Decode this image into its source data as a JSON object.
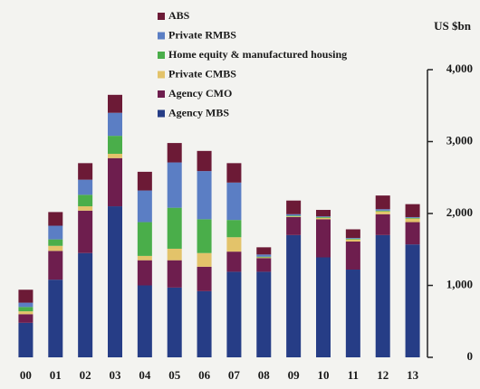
{
  "chart_data": {
    "type": "stacked_bar",
    "y_axis_label": "US $bn",
    "categories": [
      "00",
      "01",
      "02",
      "03",
      "04",
      "05",
      "06",
      "07",
      "08",
      "09",
      "10",
      "11",
      "12",
      "13"
    ],
    "series": [
      {
        "name": "Agency MBS",
        "color": "#263d86",
        "values": [
          480,
          1080,
          1450,
          2100,
          1000,
          970,
          920,
          1190,
          1190,
          1700,
          1390,
          1220,
          1700,
          1570
        ]
      },
      {
        "name": "Agency CMO",
        "color": "#6e1e4e",
        "values": [
          120,
          400,
          590,
          670,
          350,
          380,
          340,
          280,
          190,
          250,
          530,
          390,
          290,
          310
        ]
      },
      {
        "name": "Private CMBS",
        "color": "#e3c36a",
        "values": [
          40,
          70,
          60,
          60,
          60,
          160,
          190,
          200,
          10,
          10,
          20,
          30,
          40,
          50
        ]
      },
      {
        "name": "Home equity & manufactured housing",
        "color": "#4aae4a",
        "values": [
          60,
          90,
          160,
          250,
          470,
          570,
          470,
          240,
          10,
          10,
          10,
          10,
          10,
          10
        ]
      },
      {
        "name": "Private RMBS",
        "color": "#5b7ec4",
        "values": [
          60,
          190,
          210,
          320,
          440,
          630,
          670,
          520,
          30,
          20,
          10,
          10,
          20,
          10
        ]
      },
      {
        "name": "ABS",
        "color": "#6c1a36",
        "values": [
          180,
          190,
          230,
          250,
          260,
          270,
          280,
          270,
          100,
          190,
          90,
          120,
          190,
          180
        ]
      }
    ],
    "ylim": [
      0,
      4000
    ],
    "yticks": [
      0,
      {
        "value": 1000,
        "label": "1,000"
      },
      {
        "value": 2000,
        "label": "2,000"
      },
      {
        "value": 3000,
        "label": "3,000"
      },
      {
        "value": 4000,
        "label": "4,000"
      }
    ],
    "grid": false
  }
}
